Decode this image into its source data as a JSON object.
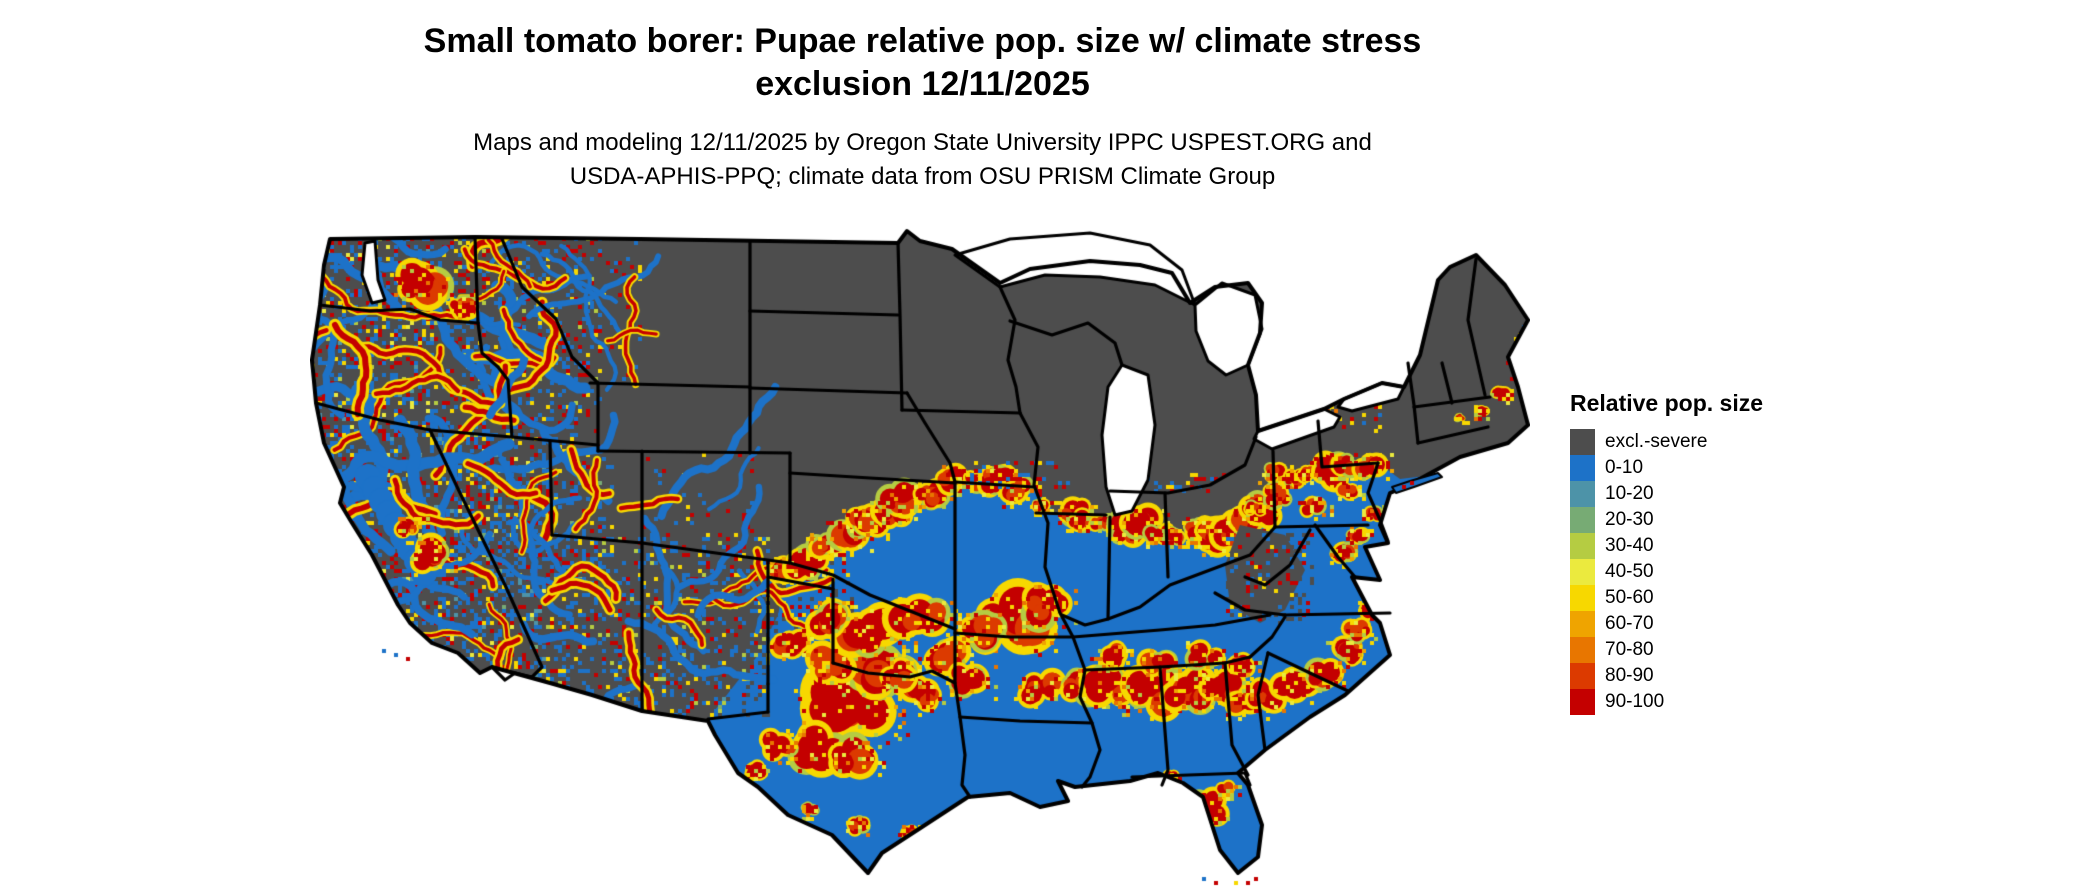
{
  "title": {
    "line1": "Small tomato borer: Pupae relative pop. size w/ climate stress",
    "line2": "exclusion 12/11/2025"
  },
  "subtitle": {
    "line1": "Maps and modeling 12/11/2025 by Oregon State University IPPC USPEST.ORG and",
    "line2": "USDA-APHIS-PPQ; climate data from OSU PRISM Climate Group"
  },
  "legend": {
    "title": "Relative pop. size",
    "entries": [
      {
        "label": "excl.-severe",
        "color": "#4d4d4d"
      },
      {
        "label": "0-10",
        "color": "#1d72c8"
      },
      {
        "label": "10-20",
        "color": "#4d93a8"
      },
      {
        "label": "20-30",
        "color": "#77ab74"
      },
      {
        "label": "30-40",
        "color": "#b5cc42"
      },
      {
        "label": "40-50",
        "color": "#ebea3e"
      },
      {
        "label": "50-60",
        "color": "#f7d800"
      },
      {
        "label": "60-70",
        "color": "#efa400"
      },
      {
        "label": "70-80",
        "color": "#e87600"
      },
      {
        "label": "80-90",
        "color": "#dc3a00"
      },
      {
        "label": "90-100",
        "color": "#c40000"
      }
    ]
  },
  "map": {
    "type": "raster-choropleth",
    "region": "Contiguous United States with state borders",
    "palette": {
      "excluded_gray": "#4d4d4d",
      "blue_0_10": "#1d72c8",
      "teal_10_20": "#4d93a8",
      "green_20_30": "#77ab74",
      "yellow_green_30_40": "#b5cc42",
      "pale_yellow_40_50": "#ebea3e",
      "yellow_50_60": "#f7d800",
      "amber_60_70": "#efa400",
      "orange_70_80": "#e87600",
      "red_orange_80_90": "#dc3a00",
      "red_90_100": "#c40000",
      "border": "#000000",
      "water": "#ffffff"
    },
    "regions_summary": {
      "northern_tier": "excl.-severe (solid gray): MT, ND, SD, MN, WI, MI, IA, NE, WY, CO, upstate NY, northern New England",
      "south_and_east": "0-10 (blue) base with 90-100 (red) hotspots rimmed in yellow across TX, OK, AR, LA, MS, AL, TN, GA, Carolinas, Mid-Atlantic and central Florida",
      "transition_band": "strong red band along the gray/blue boundary from Kansas through Missouri, Illinois, Indiana, Ohio to Pennsylvania",
      "west": "heavily mottled gray/blue with red-yellow veins in WA, OR, ID, CA, NV, UT, AZ, NM",
      "water_bodies": "Great Lakes and oceans shown white"
    }
  }
}
